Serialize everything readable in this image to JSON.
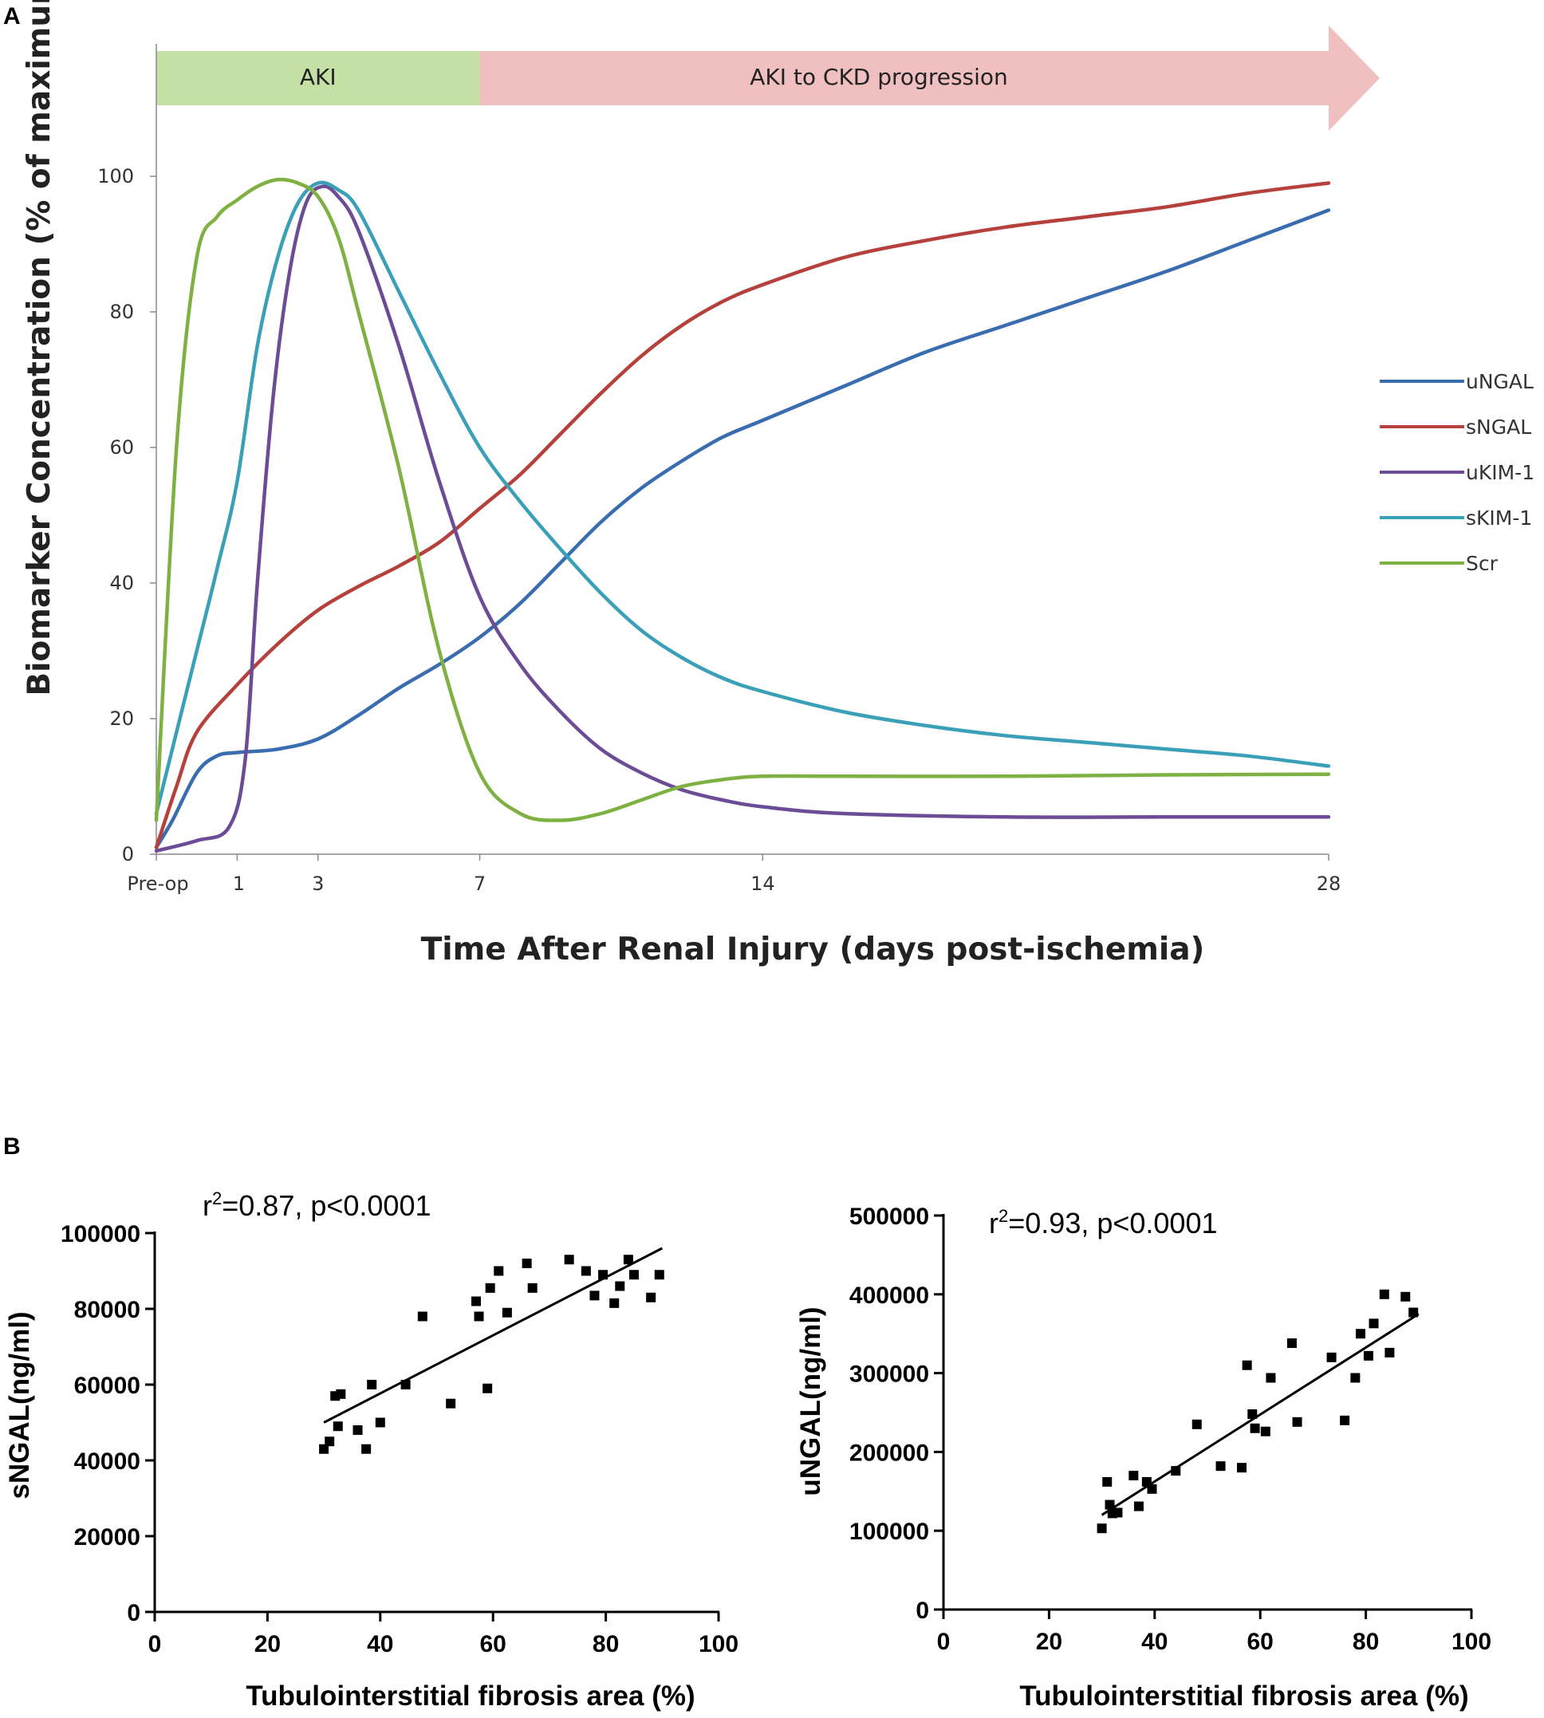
{
  "panel_a": {
    "label": "A",
    "phases": [
      {
        "label": "AKI",
        "color": "#c5e0a5",
        "start": -1,
        "end": 7
      },
      {
        "label": "AKI to CKD progression",
        "color": "#f0c0c0",
        "start": 7,
        "end": 28
      }
    ]
  },
  "panel_b": {
    "label": "B"
  },
  "chart_data": [
    {
      "type": "line",
      "title": "",
      "xlabel": "Time After Renal Injury (days post-ischemia)",
      "ylabel": "Biomarker Concentration (% of maximum)",
      "xlim": [
        -1,
        28
      ],
      "ylim": [
        0,
        100
      ],
      "xticks": [
        {
          "value": -1,
          "label": "Pre-op"
        },
        {
          "value": 1,
          "label": "1"
        },
        {
          "value": 3,
          "label": "3"
        },
        {
          "value": 7,
          "label": "7"
        },
        {
          "value": 14,
          "label": "14"
        },
        {
          "value": 28,
          "label": "28"
        }
      ],
      "yticks": [
        0,
        20,
        40,
        60,
        80,
        100
      ],
      "legend_position": "right",
      "series": [
        {
          "name": "uNGAL",
          "color": "#3a6db0",
          "points": [
            [
              -1,
              1
            ],
            [
              -0.6,
              5
            ],
            [
              0,
              12
            ],
            [
              0.5,
              14.5
            ],
            [
              1,
              15
            ],
            [
              2,
              15.5
            ],
            [
              3,
              17
            ],
            [
              4,
              20.5
            ],
            [
              5,
              24.5
            ],
            [
              6,
              28
            ],
            [
              7,
              32
            ],
            [
              8,
              37
            ],
            [
              9,
              43
            ],
            [
              10,
              49
            ],
            [
              11,
              54
            ],
            [
              12,
              58
            ],
            [
              13,
              61.5
            ],
            [
              14,
              64
            ],
            [
              16,
              69
            ],
            [
              18,
              74
            ],
            [
              20,
              78
            ],
            [
              22,
              82
            ],
            [
              24,
              86
            ],
            [
              26,
              90.5
            ],
            [
              28,
              95
            ]
          ]
        },
        {
          "name": "sNGAL",
          "color": "#b5403c",
          "points": [
            [
              -1,
              1
            ],
            [
              -0.5,
              10
            ],
            [
              0,
              18
            ],
            [
              1,
              25
            ],
            [
              2,
              31
            ],
            [
              3,
              36
            ],
            [
              4,
              39.5
            ],
            [
              5,
              42.5
            ],
            [
              6,
              46
            ],
            [
              7,
              51
            ],
            [
              8,
              56
            ],
            [
              9,
              62
            ],
            [
              10,
              68
            ],
            [
              11,
              73.5
            ],
            [
              12,
              78
            ],
            [
              13,
              81.5
            ],
            [
              14,
              84
            ],
            [
              16,
              88
            ],
            [
              18,
              90.5
            ],
            [
              20,
              92.5
            ],
            [
              22,
              94
            ],
            [
              24,
              95.5
            ],
            [
              26,
              97.5
            ],
            [
              28,
              99
            ]
          ]
        },
        {
          "name": "uKIM-1",
          "color": "#6b4c95",
          "points": [
            [
              -1,
              0.5
            ],
            [
              0,
              2
            ],
            [
              0.8,
              4
            ],
            [
              1.2,
              14
            ],
            [
              1.5,
              40
            ],
            [
              1.9,
              68
            ],
            [
              2.3,
              86
            ],
            [
              2.7,
              96
            ],
            [
              3.1,
              98.5
            ],
            [
              3.5,
              97
            ],
            [
              4,
              92
            ],
            [
              5,
              75
            ],
            [
              6,
              55
            ],
            [
              7,
              38
            ],
            [
              8,
              28
            ],
            [
              9,
              21
            ],
            [
              10,
              15.5
            ],
            [
              11,
              12
            ],
            [
              12,
              9.5
            ],
            [
              13,
              8
            ],
            [
              14,
              7
            ],
            [
              16,
              6
            ],
            [
              20,
              5.5
            ],
            [
              24,
              5.5
            ],
            [
              28,
              5.5
            ]
          ]
        },
        {
          "name": "sKIM-1",
          "color": "#3aa0b8",
          "points": [
            [
              -1,
              6
            ],
            [
              0,
              30
            ],
            [
              0.5,
              42
            ],
            [
              1,
              55
            ],
            [
              1.5,
              75
            ],
            [
              2,
              88
            ],
            [
              2.5,
              96
            ],
            [
              3,
              99
            ],
            [
              3.5,
              98
            ],
            [
              4,
              95
            ],
            [
              5,
              83
            ],
            [
              6,
              71
            ],
            [
              7,
              60
            ],
            [
              8,
              52
            ],
            [
              9,
              45
            ],
            [
              10,
              38.5
            ],
            [
              11,
              33
            ],
            [
              12,
              29
            ],
            [
              13,
              26
            ],
            [
              14,
              24
            ],
            [
              16,
              21
            ],
            [
              18,
              19
            ],
            [
              20,
              17.5
            ],
            [
              22,
              16.5
            ],
            [
              24,
              15.5
            ],
            [
              26,
              14.5
            ],
            [
              28,
              13
            ]
          ]
        },
        {
          "name": "Scr",
          "color": "#7fb142",
          "points": [
            [
              -1,
              5
            ],
            [
              -0.5,
              60
            ],
            [
              0,
              88
            ],
            [
              0.5,
              94
            ],
            [
              1,
              96.5
            ],
            [
              1.5,
              98.5
            ],
            [
              2,
              99.5
            ],
            [
              2.5,
              99
            ],
            [
              3,
              97
            ],
            [
              3.5,
              91
            ],
            [
              4,
              80
            ],
            [
              5,
              57
            ],
            [
              6,
              30
            ],
            [
              7,
              12
            ],
            [
              8,
              6
            ],
            [
              9,
              5
            ],
            [
              10,
              6
            ],
            [
              11,
              8
            ],
            [
              12,
              10
            ],
            [
              13,
              11
            ],
            [
              14,
              11.5
            ],
            [
              16,
              11.5
            ],
            [
              20,
              11.5
            ],
            [
              24,
              11.7
            ],
            [
              28,
              11.8
            ]
          ]
        }
      ]
    },
    {
      "type": "scatter",
      "title": "r²=0.87, p<0.0001",
      "stat_base": "r",
      "stat_sup": "2",
      "stat_rest": "=0.87, p<0.0001",
      "xlabel": "Tubulointerstitial fibrosis area (%)",
      "ylabel": "sNGAL(ng/ml)",
      "xlim": [
        0,
        100
      ],
      "ylim": [
        0,
        100000
      ],
      "xticks": [
        0,
        20,
        40,
        60,
        80,
        100
      ],
      "yticks": [
        0,
        20000,
        40000,
        60000,
        80000,
        100000
      ],
      "trend_line": [
        [
          30,
          50000
        ],
        [
          90,
          96000
        ]
      ],
      "points": [
        [
          30,
          43000
        ],
        [
          31,
          45000
        ],
        [
          32,
          57000
        ],
        [
          32.5,
          49000
        ],
        [
          33,
          57500
        ],
        [
          36,
          48000
        ],
        [
          37.5,
          43000
        ],
        [
          38.5,
          60000
        ],
        [
          40,
          50000
        ],
        [
          44.5,
          60000
        ],
        [
          47.5,
          78000
        ],
        [
          52.5,
          55000
        ],
        [
          57,
          82000
        ],
        [
          57.5,
          78000
        ],
        [
          59,
          59000
        ],
        [
          59.5,
          85500
        ],
        [
          61,
          90000
        ],
        [
          62.5,
          79000
        ],
        [
          66,
          92000
        ],
        [
          67,
          85500
        ],
        [
          73.5,
          93000
        ],
        [
          76.5,
          90000
        ],
        [
          78,
          83500
        ],
        [
          79.5,
          89000
        ],
        [
          81.5,
          81500
        ],
        [
          82.5,
          86000
        ],
        [
          84,
          93000
        ],
        [
          85,
          89000
        ],
        [
          88,
          83000
        ],
        [
          89.5,
          89000
        ]
      ]
    },
    {
      "type": "scatter",
      "title": "r²=0.93, p<0.0001",
      "stat_base": "r",
      "stat_sup": "2",
      "stat_rest": "=0.93, p<0.0001",
      "xlabel": "Tubulointerstitial fibrosis area (%)",
      "ylabel": "uNGAL(ng/ml)",
      "xlim": [
        0,
        100
      ],
      "ylim": [
        0,
        500000
      ],
      "xticks": [
        0,
        20,
        40,
        60,
        80,
        100
      ],
      "yticks": [
        0,
        100000,
        200000,
        300000,
        400000,
        500000
      ],
      "trend_line": [
        [
          30,
          120000
        ],
        [
          90,
          375000
        ]
      ],
      "points": [
        [
          30,
          103000
        ],
        [
          31,
          162000
        ],
        [
          31.5,
          133000
        ],
        [
          32,
          122000
        ],
        [
          33,
          123000
        ],
        [
          36,
          170000
        ],
        [
          37,
          131000
        ],
        [
          38.5,
          162000
        ],
        [
          39.5,
          153000
        ],
        [
          44,
          176000
        ],
        [
          48,
          235000
        ],
        [
          52.5,
          182000
        ],
        [
          56.5,
          180000
        ],
        [
          57.5,
          310000
        ],
        [
          58.5,
          248000
        ],
        [
          59,
          230000
        ],
        [
          61,
          226000
        ],
        [
          62,
          294000
        ],
        [
          66,
          338000
        ],
        [
          67,
          238000
        ],
        [
          73.5,
          320000
        ],
        [
          76,
          240000
        ],
        [
          78,
          294000
        ],
        [
          79,
          350000
        ],
        [
          80.5,
          322000
        ],
        [
          81.5,
          363000
        ],
        [
          83.5,
          400000
        ],
        [
          84.5,
          326000
        ],
        [
          87.5,
          397000
        ],
        [
          89,
          377000
        ]
      ]
    }
  ]
}
